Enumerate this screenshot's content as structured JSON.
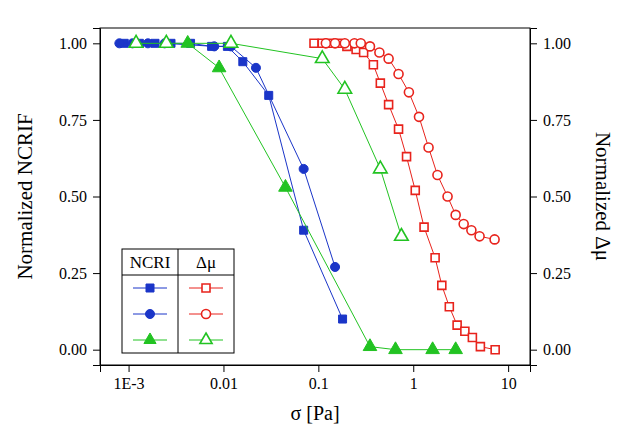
{
  "chart_data": {
    "type": "scatter",
    "x_label": "σ [Pa]",
    "y_label": "Normalized NCRIF",
    "y2_label": "Normalized Δμ",
    "log": "x",
    "legend": "lower left",
    "xlim": [
      0.0005,
      17
    ],
    "xticks": [
      {
        "value": 0.001,
        "label": "1E-3"
      },
      0.01,
      0.1,
      1,
      10
    ],
    "ylim": [
      -0.05,
      1.05
    ],
    "yticks": [
      {
        "value": 0,
        "label": "0.00"
      },
      {
        "value": 0.25,
        "label": "0.25"
      },
      {
        "value": 0.5,
        "label": "0.50"
      },
      {
        "value": 0.75,
        "label": "0.75"
      },
      {
        "value": 1,
        "label": "1.00"
      }
    ],
    "y2lim": [
      -0.05,
      1.05
    ],
    "y2ticks": [
      {
        "value": 0,
        "label": "0.00"
      },
      {
        "value": 0.25,
        "label": "0.25"
      },
      {
        "value": 0.5,
        "label": "0.50"
      },
      {
        "value": 0.75,
        "label": "0.75"
      },
      {
        "value": 1,
        "label": "1.00"
      }
    ],
    "series": [
      {
        "name": "NCRI",
        "color": "#1a35c8",
        "marker": "square",
        "line_style": "solid",
        "x": [
          0.0009,
          0.0013,
          0.0019,
          0.0028,
          0.0045,
          0.0075,
          0.011,
          0.016,
          0.03,
          0.07,
          0.18
        ],
        "values": [
          1,
          1,
          1,
          1,
          1,
          0.99,
          0.99,
          0.94,
          0.83,
          0.39,
          0.1
        ]
      },
      {
        "name": "NCRI",
        "color": "#1a35c8",
        "marker": "circle",
        "line_style": "solid",
        "x": [
          0.0008,
          0.0011,
          0.0016,
          0.0024,
          0.008,
          0.012,
          0.022,
          0.07,
          0.15
        ],
        "values": [
          1,
          1,
          1,
          1,
          0.99,
          0.99,
          0.92,
          0.59,
          0.27
        ]
      },
      {
        "name": "NCRI",
        "color": "#22c322",
        "marker": "triangle",
        "line_style": "solid",
        "x": [
          0.0042,
          0.009,
          0.045,
          0.35,
          0.65,
          1.6,
          2.8
        ],
        "values": [
          1,
          0.92,
          0.53,
          0.01,
          0,
          0,
          0
        ]
      },
      {
        "name": "Δμ",
        "color": "#e8231c",
        "marker": "square-open",
        "line_style": "solid",
        "axis": "y2",
        "x": [
          0.09,
          0.11,
          0.13,
          0.16,
          0.2,
          0.25,
          0.3,
          0.38,
          0.45,
          0.55,
          0.7,
          0.85,
          1.05,
          1.3,
          1.7,
          2.0,
          2.4,
          2.9,
          3.5,
          4.2,
          5.1,
          7.3
        ],
        "values": [
          1,
          1,
          1,
          1,
          0.99,
          0.98,
          0.97,
          0.93,
          0.87,
          0.8,
          0.72,
          0.63,
          0.52,
          0.4,
          0.3,
          0.21,
          0.14,
          0.08,
          0.06,
          0.04,
          0.01,
          0.0
        ]
      },
      {
        "name": "Δμ",
        "color": "#e8231c",
        "marker": "circle-open",
        "line_style": "solid",
        "axis": "y2",
        "x": [
          0.12,
          0.15,
          0.19,
          0.24,
          0.28,
          0.35,
          0.44,
          0.55,
          0.7,
          0.9,
          1.15,
          1.45,
          1.8,
          2.3,
          2.8,
          3.4,
          4.1,
          5.0,
          7.2
        ],
        "values": [
          1,
          1,
          1,
          1,
          1,
          0.99,
          0.97,
          0.95,
          0.9,
          0.84,
          0.76,
          0.66,
          0.57,
          0.5,
          0.44,
          0.41,
          0.39,
          0.37,
          0.36
        ]
      },
      {
        "name": "Δμ",
        "color": "#22c322",
        "marker": "triangle-open",
        "line_style": "solid",
        "axis": "y2",
        "x": [
          0.0012,
          0.0025,
          0.012,
          0.11,
          0.19,
          0.45,
          0.75
        ],
        "values": [
          1,
          1,
          1,
          0.95,
          0.85,
          0.59,
          0.37
        ]
      }
    ]
  }
}
